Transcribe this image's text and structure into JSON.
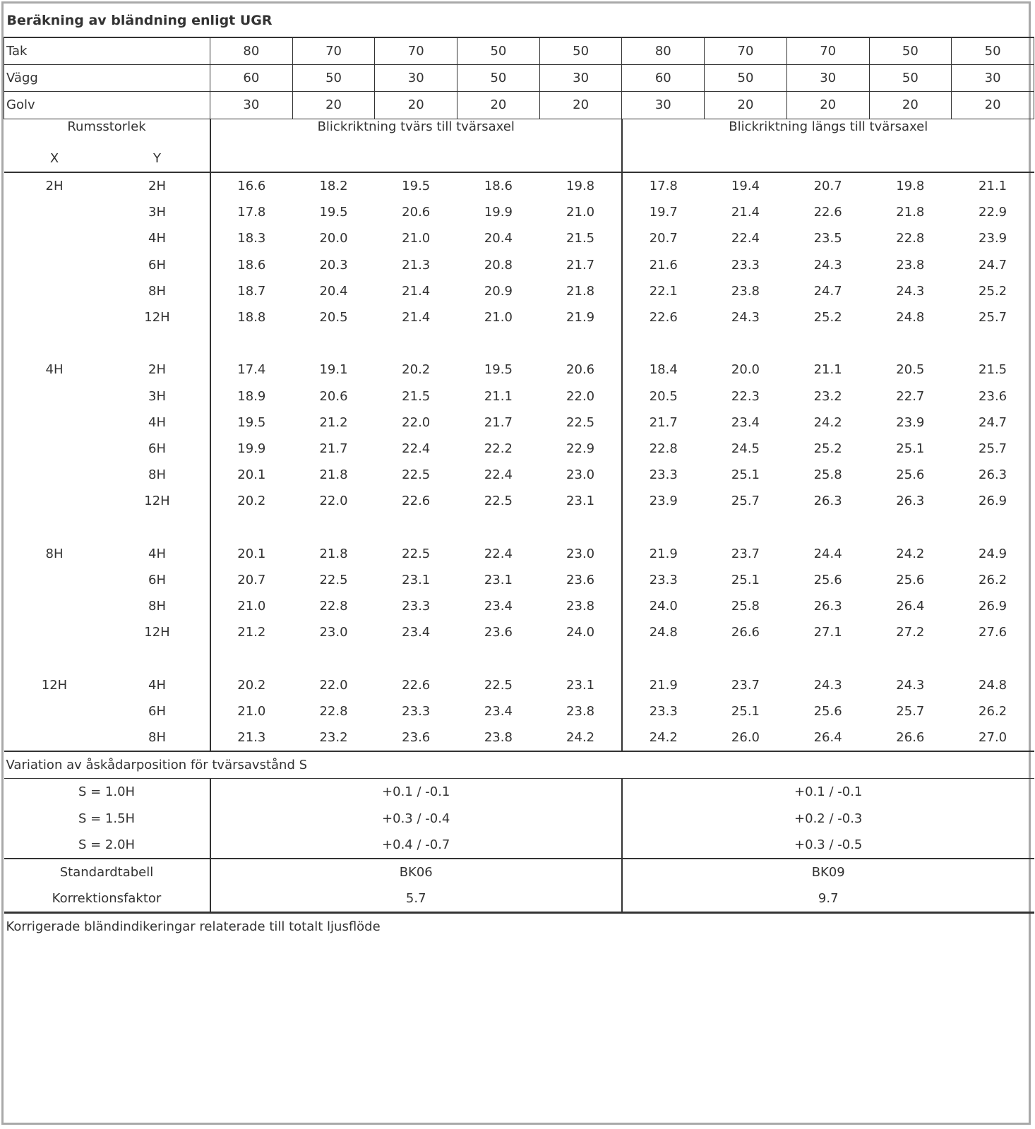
{
  "title": "Beräkning av bländning enligt UGR",
  "reflectances": [
    {
      "label": "Tak",
      "values": [
        "80",
        "70",
        "70",
        "50",
        "50",
        "80",
        "70",
        "70",
        "50",
        "50"
      ]
    },
    {
      "label": "Vägg",
      "values": [
        "60",
        "50",
        "30",
        "50",
        "30",
        "60",
        "50",
        "30",
        "50",
        "30"
      ]
    },
    {
      "label": "Golv",
      "values": [
        "30",
        "20",
        "20",
        "20",
        "20",
        "30",
        "20",
        "20",
        "20",
        "20"
      ]
    }
  ],
  "header": {
    "room_size": "Rumsstorlek",
    "x": "X",
    "y": "Y",
    "view_crosswise": "Blickriktning tvärs till tvärsaxel",
    "view_lengthwise": "Blickriktning längs till tvärsaxel"
  },
  "groups": [
    {
      "x": "2H",
      "rows": [
        {
          "y": "2H",
          "v": [
            "16.6",
            "18.2",
            "19.5",
            "18.6",
            "19.8",
            "17.8",
            "19.4",
            "20.7",
            "19.8",
            "21.1"
          ]
        },
        {
          "y": "3H",
          "v": [
            "17.8",
            "19.5",
            "20.6",
            "19.9",
            "21.0",
            "19.7",
            "21.4",
            "22.6",
            "21.8",
            "22.9"
          ]
        },
        {
          "y": "4H",
          "v": [
            "18.3",
            "20.0",
            "21.0",
            "20.4",
            "21.5",
            "20.7",
            "22.4",
            "23.5",
            "22.8",
            "23.9"
          ]
        },
        {
          "y": "6H",
          "v": [
            "18.6",
            "20.3",
            "21.3",
            "20.8",
            "21.7",
            "21.6",
            "23.3",
            "24.3",
            "23.8",
            "24.7"
          ]
        },
        {
          "y": "8H",
          "v": [
            "18.7",
            "20.4",
            "21.4",
            "20.9",
            "21.8",
            "22.1",
            "23.8",
            "24.7",
            "24.3",
            "25.2"
          ]
        },
        {
          "y": "12H",
          "v": [
            "18.8",
            "20.5",
            "21.4",
            "21.0",
            "21.9",
            "22.6",
            "24.3",
            "25.2",
            "24.8",
            "25.7"
          ]
        }
      ]
    },
    {
      "x": "4H",
      "rows": [
        {
          "y": "2H",
          "v": [
            "17.4",
            "19.1",
            "20.2",
            "19.5",
            "20.6",
            "18.4",
            "20.0",
            "21.1",
            "20.5",
            "21.5"
          ]
        },
        {
          "y": "3H",
          "v": [
            "18.9",
            "20.6",
            "21.5",
            "21.1",
            "22.0",
            "20.5",
            "22.3",
            "23.2",
            "22.7",
            "23.6"
          ]
        },
        {
          "y": "4H",
          "v": [
            "19.5",
            "21.2",
            "22.0",
            "21.7",
            "22.5",
            "21.7",
            "23.4",
            "24.2",
            "23.9",
            "24.7"
          ]
        },
        {
          "y": "6H",
          "v": [
            "19.9",
            "21.7",
            "22.4",
            "22.2",
            "22.9",
            "22.8",
            "24.5",
            "25.2",
            "25.1",
            "25.7"
          ]
        },
        {
          "y": "8H",
          "v": [
            "20.1",
            "21.8",
            "22.5",
            "22.4",
            "23.0",
            "23.3",
            "25.1",
            "25.8",
            "25.6",
            "26.3"
          ]
        },
        {
          "y": "12H",
          "v": [
            "20.2",
            "22.0",
            "22.6",
            "22.5",
            "23.1",
            "23.9",
            "25.7",
            "26.3",
            "26.3",
            "26.9"
          ]
        }
      ]
    },
    {
      "x": "8H",
      "rows": [
        {
          "y": "4H",
          "v": [
            "20.1",
            "21.8",
            "22.5",
            "22.4",
            "23.0",
            "21.9",
            "23.7",
            "24.4",
            "24.2",
            "24.9"
          ]
        },
        {
          "y": "6H",
          "v": [
            "20.7",
            "22.5",
            "23.1",
            "23.1",
            "23.6",
            "23.3",
            "25.1",
            "25.6",
            "25.6",
            "26.2"
          ]
        },
        {
          "y": "8H",
          "v": [
            "21.0",
            "22.8",
            "23.3",
            "23.4",
            "23.8",
            "24.0",
            "25.8",
            "26.3",
            "26.4",
            "26.9"
          ]
        },
        {
          "y": "12H",
          "v": [
            "21.2",
            "23.0",
            "23.4",
            "23.6",
            "24.0",
            "24.8",
            "26.6",
            "27.1",
            "27.2",
            "27.6"
          ]
        }
      ]
    },
    {
      "x": "12H",
      "rows": [
        {
          "y": "4H",
          "v": [
            "20.2",
            "22.0",
            "22.6",
            "22.5",
            "23.1",
            "21.9",
            "23.7",
            "24.3",
            "24.3",
            "24.8"
          ]
        },
        {
          "y": "6H",
          "v": [
            "21.0",
            "22.8",
            "23.3",
            "23.4",
            "23.8",
            "23.3",
            "25.1",
            "25.6",
            "25.7",
            "26.2"
          ]
        },
        {
          "y": "8H",
          "v": [
            "21.3",
            "23.2",
            "23.6",
            "23.8",
            "24.2",
            "24.2",
            "26.0",
            "26.4",
            "26.6",
            "27.0"
          ]
        }
      ]
    }
  ],
  "variation": {
    "title": "Variation av åskådarposition för tvärsavstånd S",
    "rows": [
      {
        "label": "S = 1.0H",
        "cross": "+0.1 / -0.1",
        "length": "+0.1 / -0.1"
      },
      {
        "label": "S = 1.5H",
        "cross": "+0.3 / -0.4",
        "length": "+0.2 / -0.3"
      },
      {
        "label": "S = 2.0H",
        "cross": "+0.4 / -0.7",
        "length": "+0.3 / -0.5"
      }
    ]
  },
  "standard": {
    "table_label": "Standardtabell",
    "table_cross": "BK06",
    "table_length": "BK09",
    "factor_label": "Korrektionsfaktor",
    "factor_cross": "5.7",
    "factor_length": "9.7"
  },
  "footer_note": "Korrigerade bländindikeringar relaterade till totalt ljusflöde"
}
